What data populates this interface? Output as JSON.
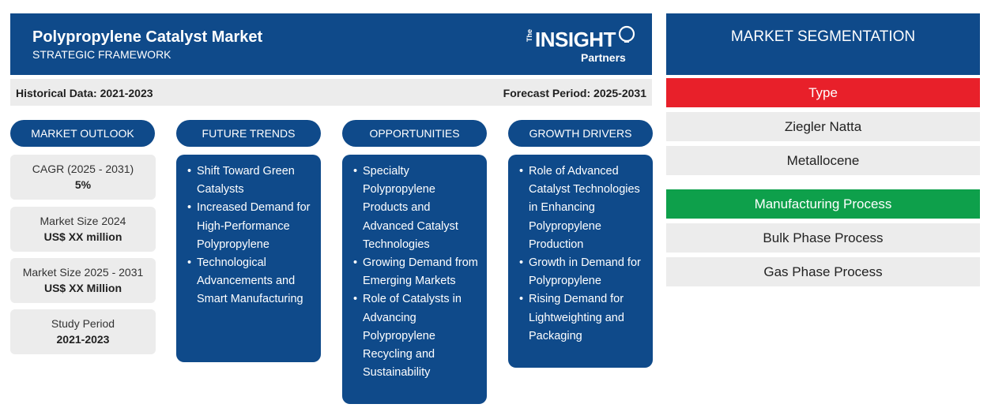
{
  "header": {
    "title": "Polypropylene Catalyst Market",
    "subtitle": "STRATEGIC FRAMEWORK",
    "logo": {
      "the": "The",
      "insight": "INSIGHT",
      "partners": "Partners"
    }
  },
  "periods": {
    "historical": "Historical Data: 2021-2023",
    "forecast": "Forecast Period: 2025-2031"
  },
  "outlook": {
    "heading": "MARKET OUTLOOK",
    "stats": [
      {
        "label": "CAGR (2025 - 2031)",
        "value": "5%"
      },
      {
        "label": "Market Size 2024",
        "value": "US$ XX million"
      },
      {
        "label": "Market Size 2025 - 2031",
        "value": "US$ XX Million"
      },
      {
        "label": "Study Period",
        "value": "2021-2023"
      }
    ]
  },
  "future_trends": {
    "heading": "FUTURE TRENDS",
    "items": [
      "Shift Toward Green Catalysts",
      "Increased Demand for High-Performance Polypropylene",
      "Technological Advancements and Smart Manufacturing"
    ]
  },
  "opportunities": {
    "heading": "OPPORTUNITIES",
    "items": [
      "Specialty Polypropylene Products and Advanced Catalyst Technologies",
      "Growing Demand from Emerging Markets",
      "Role of Catalysts in Advancing Polypropylene Recycling and Sustainability"
    ]
  },
  "growth_drivers": {
    "heading": "GROWTH DRIVERS",
    "items": [
      "Role of Advanced Catalyst Technologies in Enhancing Polypropylene Production",
      "Growth in Demand for Polypropylene",
      "Rising Demand for Lightweighting and Packaging"
    ]
  },
  "segmentation": {
    "heading": "MARKET SEGMENTATION",
    "groups": [
      {
        "name": "Type",
        "color": "#e8202a",
        "items": [
          "Ziegler Natta",
          "Metallocene"
        ]
      },
      {
        "name": "Manufacturing Process",
        "color": "#0ea04b",
        "items": [
          "Bulk Phase Process",
          "Gas Phase Process"
        ]
      }
    ]
  },
  "colors": {
    "primary": "#0f4a8a",
    "panel_bg": "#ececec"
  }
}
